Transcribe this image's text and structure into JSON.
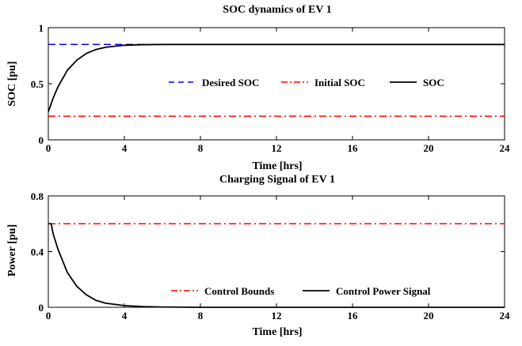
{
  "chart_data": [
    {
      "type": "line",
      "title": "SOC dynamics of EV 1",
      "xlabel": "Time [hrs]",
      "ylabel": "SOC [pu]",
      "xlim": [
        0,
        24
      ],
      "ylim": [
        0,
        1
      ],
      "xticks": [
        0,
        4,
        8,
        12,
        16,
        20,
        24
      ],
      "yticks": [
        0,
        0.5,
        1
      ],
      "grid": false,
      "legend_position": "center-right",
      "series": [
        {
          "name": "Desired SOC",
          "style": "dashed",
          "color": "#0000ff",
          "x": [
            0,
            24
          ],
          "y": [
            0.85,
            0.85
          ]
        },
        {
          "name": "Initial SOC",
          "style": "dashdot",
          "color": "#ff0000",
          "x": [
            0,
            24
          ],
          "y": [
            0.21,
            0.21
          ]
        },
        {
          "name": "SOC",
          "style": "solid",
          "color": "#000000",
          "x": [
            0,
            0.25,
            0.5,
            1,
            1.5,
            2,
            2.5,
            3,
            4,
            5,
            6,
            8,
            12,
            16,
            20,
            24
          ],
          "y": [
            0.25,
            0.37,
            0.47,
            0.62,
            0.71,
            0.77,
            0.805,
            0.825,
            0.843,
            0.848,
            0.85,
            0.85,
            0.85,
            0.85,
            0.85,
            0.85
          ]
        }
      ]
    },
    {
      "type": "line",
      "title": "Charging Signal of EV 1",
      "xlabel": "Time [hrs]",
      "ylabel": "Power [pu]",
      "xlim": [
        0,
        24
      ],
      "ylim": [
        0,
        0.8
      ],
      "xticks": [
        0,
        4,
        8,
        12,
        16,
        20,
        24
      ],
      "yticks": [
        0,
        0.4,
        0.8
      ],
      "grid": false,
      "legend_position": "bottom-right",
      "series": [
        {
          "name": "Control Bounds",
          "style": "dashdot",
          "color": "#ff0000",
          "x": [
            0,
            24
          ],
          "y": [
            0.6,
            0.6
          ]
        },
        {
          "name": "Control Power Signal",
          "style": "solid",
          "color": "#000000",
          "x": [
            0,
            0.15,
            0.25,
            0.5,
            1,
            1.5,
            2,
            2.5,
            3,
            4,
            5,
            6,
            8,
            12,
            16,
            20,
            24
          ],
          "y": [
            0.6,
            0.6,
            0.53,
            0.42,
            0.25,
            0.15,
            0.09,
            0.05,
            0.03,
            0.012,
            0.005,
            0.002,
            0,
            0,
            0,
            0,
            0
          ]
        }
      ]
    }
  ]
}
